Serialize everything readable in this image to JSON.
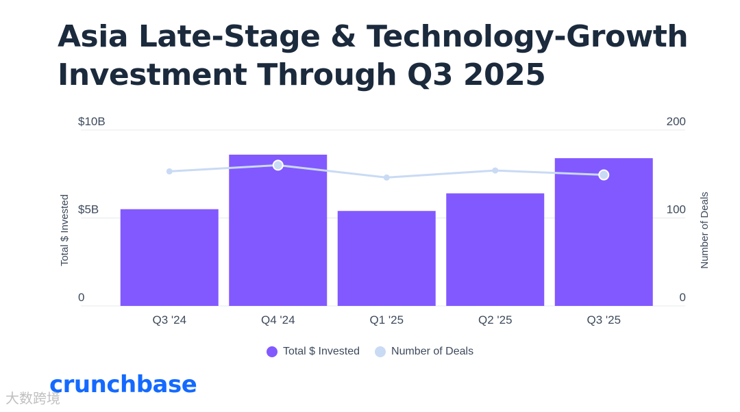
{
  "title": {
    "line1": "Asia Late-Stage & Technology-Growth",
    "line2": "Investment Through Q3 2025"
  },
  "brand": {
    "logo": "crunchbase",
    "watermark": "大数跨境"
  },
  "colors": {
    "bar": "#8259ff",
    "line": "#c9daf4",
    "title": "#1b2a3c",
    "logo": "#146aff"
  },
  "chart_data": {
    "type": "bar",
    "categories": [
      "Q3 '24",
      "Q4 '24",
      "Q1 '25",
      "Q2 '25",
      "Q3 '25"
    ],
    "series": [
      {
        "name": "Total $ Invested",
        "type": "bar",
        "axis": "left",
        "values": [
          5.5,
          8.6,
          5.4,
          6.4,
          8.4
        ]
      },
      {
        "name": "Number of Deals",
        "type": "line",
        "axis": "right",
        "values": [
          153,
          160,
          146,
          154,
          149
        ]
      }
    ],
    "y_left": {
      "label": "Total $ Invested",
      "range": [
        0,
        10
      ],
      "ticks": [
        0,
        5,
        10
      ],
      "tick_labels": [
        "0",
        "$5B",
        "$10B"
      ]
    },
    "y_right": {
      "label": "Number of Deals",
      "range": [
        0,
        200
      ],
      "ticks": [
        0,
        100,
        200
      ],
      "tick_labels": [
        "0",
        "100",
        "200"
      ]
    },
    "grid": true,
    "legend": {
      "position": "bottom",
      "items": [
        "Total $ Invested",
        "Number of Deals"
      ]
    }
  }
}
